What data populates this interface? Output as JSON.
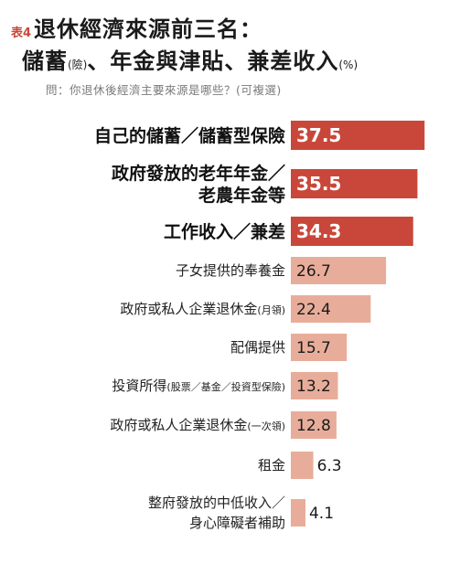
{
  "header": {
    "table_no": "表4",
    "title_line1": "退休經濟來源前三名：",
    "title_line2_main": "儲蓄",
    "title_line2_paren": "(險)",
    "title_line2_rest": "、年金與津貼、兼差收入",
    "title_line2_unit": "(%)",
    "question": "問：你退休後經濟主要來源是哪些？(可複選)"
  },
  "colors": {
    "top3": "#c9473a",
    "others": "#e8ad9a",
    "accent": "#c9473a"
  },
  "chart_data": {
    "type": "bar",
    "orientation": "horizontal",
    "unit": "%",
    "xlim": [
      0,
      40
    ],
    "grid": false,
    "categories": [
      {
        "lines": [
          "自己的儲蓄／儲蓄型保險"
        ],
        "emphasis": true
      },
      {
        "lines": [
          "政府發放的老年年金／",
          "老農年金等"
        ],
        "emphasis": true
      },
      {
        "lines": [
          "工作收入／兼差"
        ],
        "emphasis": true
      },
      {
        "lines": [
          "子女提供的奉養金"
        ],
        "emphasis": false
      },
      {
        "lines": [
          "政府或私人企業退休金"
        ],
        "note": "(月領)",
        "emphasis": false
      },
      {
        "lines": [
          "配偶提供"
        ],
        "emphasis": false
      },
      {
        "lines": [
          "投資所得"
        ],
        "note": "(股票／基金／投資型保險)",
        "emphasis": false
      },
      {
        "lines": [
          "政府或私人企業退休金"
        ],
        "note": "(一次領)",
        "emphasis": false
      },
      {
        "lines": [
          "租金"
        ],
        "emphasis": false
      },
      {
        "lines": [
          "整府發放的中低收入／",
          "身心障礙者補助"
        ],
        "emphasis": false
      }
    ],
    "values": [
      37.5,
      35.5,
      34.3,
      26.7,
      22.4,
      15.7,
      13.2,
      12.8,
      6.3,
      4.1
    ],
    "value_labels": [
      "37.5",
      "35.5",
      "34.3",
      "26.7",
      "22.4",
      "15.7",
      "13.2",
      "12.8",
      "6.3",
      "4.1"
    ]
  }
}
